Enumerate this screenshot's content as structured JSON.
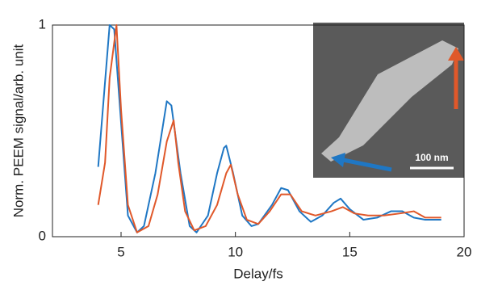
{
  "chart_data": {
    "type": "line",
    "x_label": "Delay/fs",
    "y_label": "Norm. PEEM signal/arb. unit",
    "annotations": [
      "100 nm"
    ],
    "xlim": [
      2,
      20
    ],
    "xticks": [
      5,
      10,
      15,
      20
    ],
    "ylim": [
      0,
      1
    ],
    "yticks": [
      0,
      1
    ],
    "series": [
      {
        "name": "blue",
        "color": "#1f77c4",
        "x": [
          4,
          4.5,
          4.7,
          5.3,
          5.7,
          6.0,
          6.5,
          7.0,
          7.2,
          7.6,
          8.0,
          8.3,
          8.8,
          9.2,
          9.5,
          9.6,
          9.9,
          10.3,
          10.7,
          11.0,
          11.6,
          12.0,
          12.3,
          12.8,
          13.3,
          13.8,
          14.3,
          14.6,
          15.0,
          15.6,
          16.2,
          16.8,
          17.3,
          17.8,
          18.3,
          19
        ],
        "values": [
          0.33,
          1.0,
          0.98,
          0.1,
          0.02,
          0.05,
          0.3,
          0.64,
          0.62,
          0.3,
          0.05,
          0.02,
          0.1,
          0.3,
          0.42,
          0.43,
          0.3,
          0.1,
          0.05,
          0.06,
          0.15,
          0.23,
          0.22,
          0.12,
          0.07,
          0.1,
          0.16,
          0.18,
          0.13,
          0.08,
          0.09,
          0.12,
          0.12,
          0.09,
          0.08,
          0.08
        ]
      },
      {
        "name": "orange",
        "color": "#e0582a",
        "x": [
          4,
          4.3,
          4.5,
          4.8,
          5.0,
          5.3,
          5.7,
          6.2,
          6.6,
          7.0,
          7.3,
          7.5,
          7.8,
          8.2,
          8.7,
          9.2,
          9.6,
          9.8,
          10.1,
          10.5,
          11.0,
          11.5,
          12.0,
          12.4,
          12.9,
          13.5,
          14.2,
          14.7,
          15.2,
          15.8,
          16.5,
          17.2,
          17.8,
          18.3,
          19
        ],
        "values": [
          0.15,
          0.35,
          0.75,
          1.0,
          0.6,
          0.15,
          0.02,
          0.05,
          0.2,
          0.45,
          0.55,
          0.35,
          0.12,
          0.03,
          0.05,
          0.15,
          0.3,
          0.34,
          0.2,
          0.08,
          0.06,
          0.12,
          0.2,
          0.2,
          0.12,
          0.1,
          0.12,
          0.14,
          0.11,
          0.1,
          0.1,
          0.11,
          0.12,
          0.09,
          0.09
        ]
      }
    ]
  }
}
